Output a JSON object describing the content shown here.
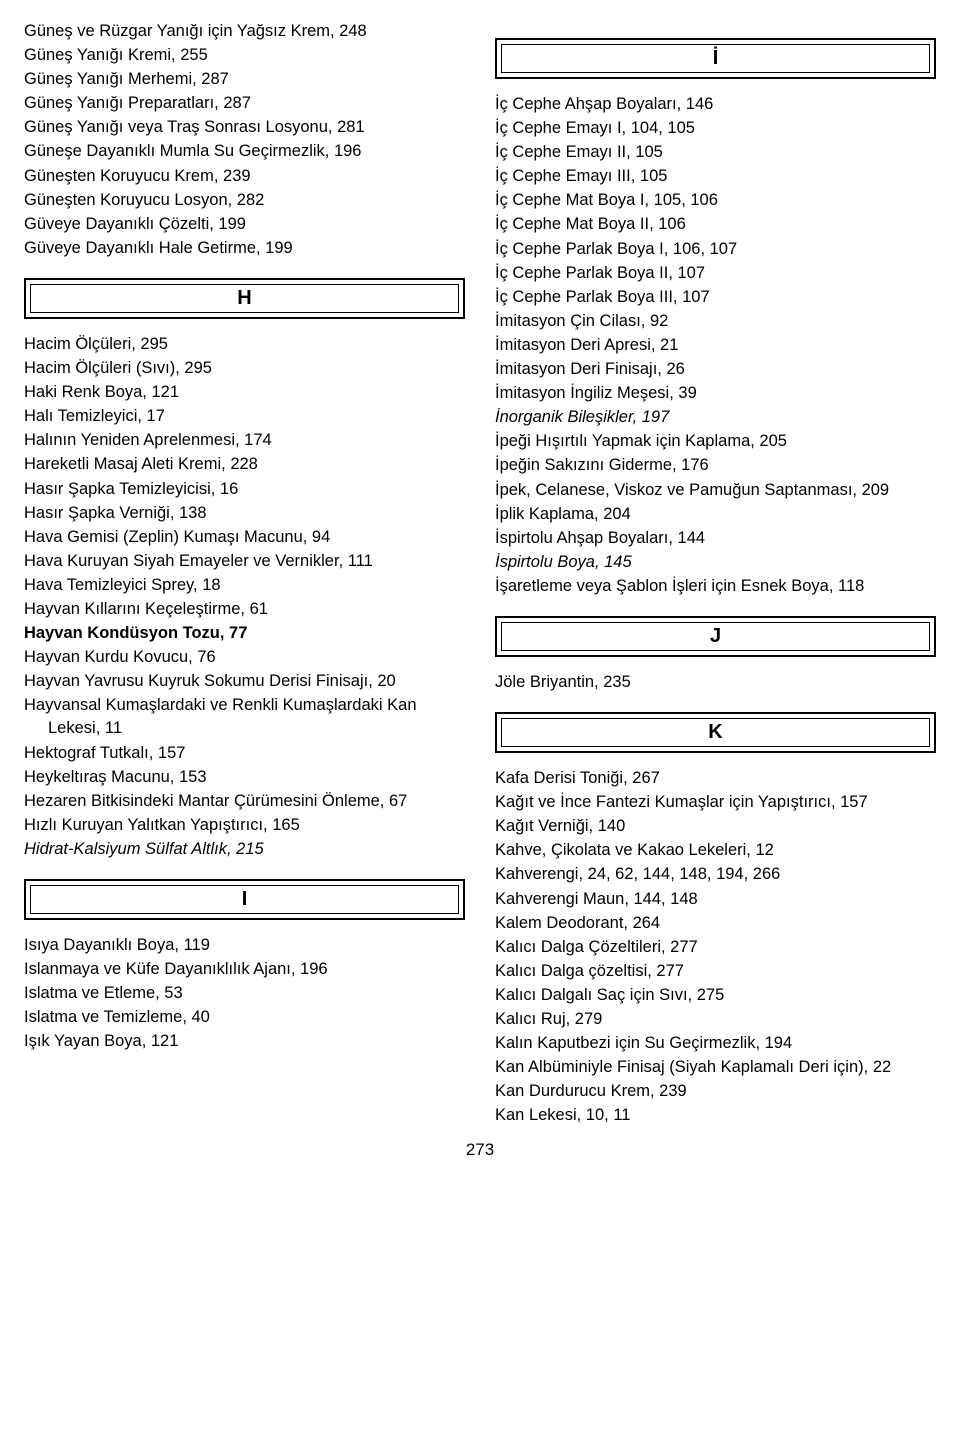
{
  "page_number": "273",
  "left": {
    "pre_entries": [
      {
        "text": "Güneş ve Rüzgar Yanığı için Yağsız Krem, 248"
      },
      {
        "text": "Güneş Yanığı Kremi, 255"
      },
      {
        "text": "Güneş Yanığı Merhemi, 287"
      },
      {
        "text": "Güneş Yanığı Preparatları, 287"
      },
      {
        "text": "Güneş Yanığı veya Traş Sonrası Losyonu, 281"
      },
      {
        "text": "Güneşe Dayanıklı Mumla Su Geçirmezlik, 196"
      },
      {
        "text": "Güneşten Koruyucu Krem, 239"
      },
      {
        "text": "Güneşten Koruyucu Losyon, 282"
      },
      {
        "text": "Güveye Dayanıklı Çözelti, 199"
      },
      {
        "text": "Güveye Dayanıklı Hale Getirme, 199"
      }
    ],
    "sections": [
      {
        "letter": "H",
        "entries": [
          {
            "text": "Hacim Ölçüleri, 295"
          },
          {
            "text": "Hacim Ölçüleri (Sıvı), 295"
          },
          {
            "text": "Haki Renk Boya, 121"
          },
          {
            "text": "Halı Temizleyici, 17"
          },
          {
            "text": "Halının Yeniden Aprelenmesi, 174"
          },
          {
            "text": "Hareketli Masaj Aleti Kremi, 228"
          },
          {
            "text": "Hasır Şapka Temizleyicisi, 16"
          },
          {
            "text": "Hasır Şapka Verniği, 138"
          },
          {
            "text": "Hava Gemisi (Zeplin) Kumaşı Macunu, 94"
          },
          {
            "text": "Hava Kuruyan Siyah Emayeler ve Vernikler, 111"
          },
          {
            "text": "Hava Temizleyici Sprey, 18"
          },
          {
            "text": "Hayvan Kıllarını Keçeleştirme, 61"
          },
          {
            "text": "Hayvan Kondüsyon Tozu, 77",
            "bold": true
          },
          {
            "text": "Hayvan Kurdu Kovucu, 76"
          },
          {
            "text": "Hayvan Yavrusu Kuyruk Sokumu Derisi Finisajı, 20"
          },
          {
            "text": "Hayvansal Kumaşlardaki ve Renkli Kumaşlardaki Kan Lekesi, 11"
          },
          {
            "text": "Hektograf Tutkalı, 157"
          },
          {
            "text": "Heykeltıraş Macunu, 153"
          },
          {
            "text": "Hezaren Bitkisindeki Mantar Çürümesini Önleme, 67"
          },
          {
            "text": "Hızlı Kuruyan Yalıtkan Yapıştırıcı, 165"
          },
          {
            "text": "Hidrat-Kalsiyum Sülfat Altlık, 215",
            "italic": true
          }
        ]
      },
      {
        "letter": "I",
        "entries": [
          {
            "text": "Isıya Dayanıklı Boya, 119"
          },
          {
            "text": "Islanmaya ve Küfe Dayanıklılık Ajanı, 196"
          },
          {
            "text": "Islatma ve Etleme, 53"
          },
          {
            "text": "Islatma ve Temizleme, 40"
          },
          {
            "text": "Işık Yayan Boya, 121"
          }
        ]
      }
    ]
  },
  "right": {
    "sections": [
      {
        "letter": "İ",
        "entries": [
          {
            "text": "İç Cephe Ahşap Boyaları, 146"
          },
          {
            "text": "İç Cephe Emayı I, 104, 105"
          },
          {
            "text": "İç Cephe Emayı II, 105"
          },
          {
            "text": "İç Cephe Emayı III, 105"
          },
          {
            "text": "İç Cephe Mat Boya I, 105, 106"
          },
          {
            "text": "İç Cephe Mat Boya II, 106"
          },
          {
            "text": "İç Cephe Parlak Boya I, 106, 107"
          },
          {
            "text": "İç Cephe Parlak Boya II, 107"
          },
          {
            "text": "İç Cephe Parlak Boya III, 107"
          },
          {
            "text": "İmitasyon Çin Cilası, 92"
          },
          {
            "text": "İmitasyon Deri Apresi, 21"
          },
          {
            "text": "İmitasyon Deri Finisajı, 26"
          },
          {
            "text": "İmitasyon İngiliz Meşesi, 39"
          },
          {
            "text": "İnorganik Bileşikler, 197",
            "italic": true
          },
          {
            "text": "İpeği Hışırtılı Yapmak için Kaplama, 205"
          },
          {
            "text": "İpeğin Sakızını Giderme, 176"
          },
          {
            "text": "İpek, Celanese, Viskoz ve Pamuğun Saptanması, 209"
          },
          {
            "text": "İplik Kaplama, 204"
          },
          {
            "text": "İspirtolu Ahşap Boyaları, 144"
          },
          {
            "text": "İspirtolu Boya, 145",
            "italic": true
          },
          {
            "text": "İşaretleme veya Şablon İşleri için Esnek Boya, 118"
          }
        ]
      },
      {
        "letter": "J",
        "entries": [
          {
            "text": "Jöle Briyantin, 235"
          }
        ]
      },
      {
        "letter": "K",
        "entries": [
          {
            "text": "Kafa Derisi Toniği, 267"
          },
          {
            "text": "Kağıt ve İnce Fantezi Kumaşlar için Yapıştırıcı, 157"
          },
          {
            "text": "Kağıt Verniği, 140"
          },
          {
            "text": "Kahve, Çikolata ve Kakao Lekeleri, 12"
          },
          {
            "text": "Kahverengi, 24, 62, 144, 148, 194, 266"
          },
          {
            "text": "Kahverengi Maun, 144, 148"
          },
          {
            "text": "Kalem Deodorant, 264"
          },
          {
            "text": "Kalıcı Dalga Çözeltileri, 277"
          },
          {
            "text": "Kalıcı Dalga çözeltisi, 277"
          },
          {
            "text": "Kalıcı Dalgalı Saç için Sıvı, 275"
          },
          {
            "text": "Kalıcı Ruj, 279"
          },
          {
            "text": "Kalın Kaputbezi için Su Geçirmezlik, 194"
          },
          {
            "text": "Kan Albüminiyle Finisaj (Siyah Kaplamalı Deri için), 22"
          },
          {
            "text": "Kan Durdurucu Krem, 239"
          },
          {
            "text": "Kan Lekesi, 10, 11"
          }
        ]
      }
    ]
  }
}
